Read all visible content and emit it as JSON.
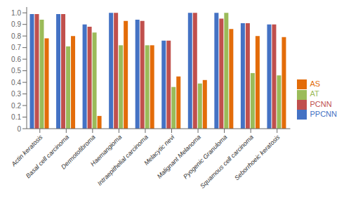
{
  "chart_data": {
    "type": "bar",
    "categories": [
      "Actin keratosis",
      "Basal cell carcinoma",
      "Dermotofibroma",
      "Haemangioma",
      "Intraepithelial carcinoma",
      "Melacytic nevi",
      "Malignant Melanoma",
      "Pyogenic Granuloma",
      "Squamous cell carcinoma",
      "Seborrhoeic keratosis"
    ],
    "series": [
      {
        "name": "PPCNN",
        "color": "#4472C4",
        "values": [
          0.99,
          0.99,
          0.9,
          1.0,
          0.94,
          0.76,
          1.0,
          1.0,
          0.91,
          0.9
        ]
      },
      {
        "name": "PCNN",
        "color": "#C0504D",
        "values": [
          0.99,
          0.99,
          0.88,
          1.0,
          0.93,
          0.76,
          1.0,
          0.95,
          0.91,
          0.9
        ]
      },
      {
        "name": "AT",
        "color": "#9BBB59",
        "values": [
          0.94,
          0.71,
          0.83,
          0.72,
          0.72,
          0.36,
          0.39,
          1.0,
          0.48,
          0.46
        ]
      },
      {
        "name": "AS",
        "color": "#E36C09",
        "values": [
          0.78,
          0.8,
          0.11,
          0.93,
          0.72,
          0.45,
          0.42,
          0.86,
          0.8,
          0.79
        ]
      }
    ],
    "ylim": [
      0,
      1.05
    ],
    "yticks": [
      0,
      0.1,
      0.2,
      0.3,
      0.4,
      0.5,
      0.6,
      0.7,
      0.8,
      0.9,
      {
        "value": 1.0,
        "label": "1.0"
      }
    ],
    "grid": false,
    "legend": "right"
  }
}
